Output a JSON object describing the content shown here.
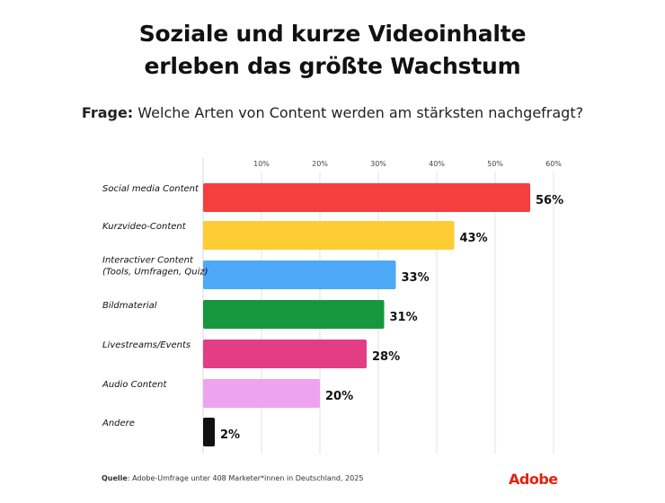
{
  "header": {
    "title_line1": "Soziale und kurze Videoinhalte",
    "title_line2": "erleben das größte Wachstum",
    "question_label": "Frage:",
    "question_text": "Welche Arten von Content werden am stärksten nachgefragt?"
  },
  "chart_data": {
    "type": "bar",
    "orientation": "horizontal",
    "categories": [
      [
        "Social media Content"
      ],
      [
        "Kurzvideo-Content"
      ],
      [
        "Interactiver Content",
        "(Tools, Umfragen, Quiz)"
      ],
      [
        "Bildmaterial"
      ],
      [
        "Livestreams/Events"
      ],
      [
        "Audio Content"
      ],
      [
        "Andere"
      ]
    ],
    "values": [
      56,
      43,
      33,
      31,
      28,
      20,
      2
    ],
    "value_labels": [
      "56%",
      "43%",
      "33%",
      "31%",
      "28%",
      "20%",
      "2%"
    ],
    "colors": [
      "#f53e3e",
      "#fecd34",
      "#4ea8f8",
      "#16973e",
      "#e33e85",
      "#eda3f0",
      "#111111"
    ],
    "xticks": [
      10,
      20,
      30,
      40,
      50,
      60
    ],
    "xtick_labels": [
      "10%",
      "20%",
      "30%",
      "40%",
      "50%",
      "60%"
    ],
    "xlim": [
      0,
      60
    ],
    "grid": true,
    "xlabel": "",
    "ylabel": ""
  },
  "footer": {
    "source_label": "Quelle",
    "source_text": ": Adobe-Umfrage unter 408 Marketer*innen in Deutschland, 2025",
    "logo_text": "Adobe",
    "brand_color": "#e8210f"
  }
}
